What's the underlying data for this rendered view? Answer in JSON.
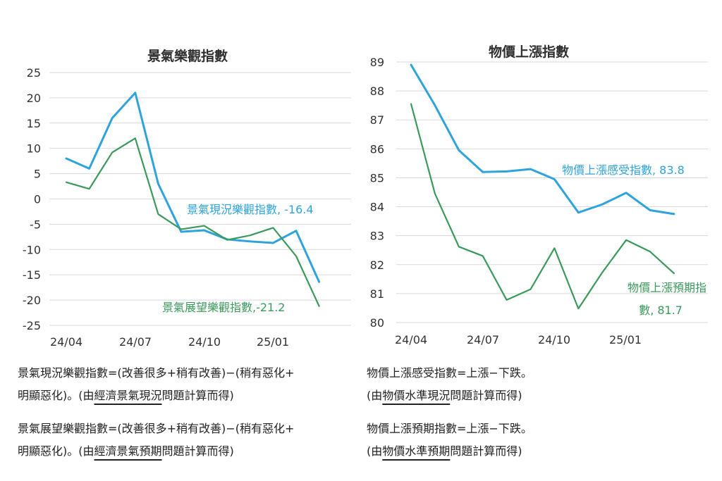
{
  "chart_data": [
    {
      "type": "line",
      "title": "景氣樂觀指數",
      "x": [
        "24/04",
        "24/05",
        "24/06",
        "24/07",
        "24/08",
        "24/09",
        "24/10",
        "24/11",
        "24/12",
        "25/01",
        "25/02",
        "25/03"
      ],
      "x_ticks": [
        "24/04",
        "24/07",
        "24/10",
        "25/01"
      ],
      "y_ticks": [
        "25",
        "20",
        "15",
        "10",
        "5",
        "0",
        "-5",
        "-10",
        "-15",
        "-20",
        "-25"
      ],
      "ylim": [
        -25,
        25
      ],
      "grid": true,
      "series": [
        {
          "name": "景氣現況樂觀指數",
          "color": "#2ea3dc",
          "label": "景氣現況樂觀指數, -16.4",
          "values": [
            8.0,
            6.0,
            16.0,
            21.0,
            3.0,
            -6.5,
            -6.2,
            -8.0,
            -8.4,
            -8.7,
            -6.3,
            -16.4
          ]
        },
        {
          "name": "景氣展望樂觀指數",
          "color": "#3a9a5b",
          "label": "景氣展望樂觀指數,-21.2",
          "values": [
            3.3,
            2.0,
            9.2,
            12.0,
            -3.0,
            -6.0,
            -5.3,
            -8.1,
            -7.2,
            -5.7,
            -11.3,
            -21.2
          ]
        }
      ]
    },
    {
      "type": "line",
      "title": "物價上漲指數",
      "x": [
        "24/04",
        "24/05",
        "24/06",
        "24/07",
        "24/08",
        "24/09",
        "24/10",
        "24/11",
        "24/12",
        "25/01",
        "25/02",
        "25/03"
      ],
      "x_ticks": [
        "24/04",
        "24/07",
        "24/10",
        "25/01"
      ],
      "y_ticks": [
        "89",
        "88",
        "87",
        "86",
        "85",
        "84",
        "83",
        "82",
        "81",
        "80"
      ],
      "ylim": [
        80,
        89
      ],
      "grid": true,
      "series": [
        {
          "name": "物價上漲感受指數",
          "color": "#2ea3dc",
          "label": "物價上漲感受指數, 83.8",
          "values": [
            88.9,
            87.5,
            85.95,
            85.2,
            85.22,
            85.3,
            84.95,
            83.8,
            84.08,
            84.48,
            83.88,
            83.75
          ]
        },
        {
          "name": "物價上漲預期指數",
          "color": "#3a9a5b",
          "label_lines": [
            "物價上漲預期指",
            "數, 81.7"
          ],
          "values": [
            87.55,
            84.45,
            82.62,
            82.3,
            80.78,
            81.15,
            82.57,
            80.48,
            81.73,
            82.85,
            82.45,
            81.7
          ]
        }
      ]
    }
  ],
  "notes": {
    "left1": {
      "line1": "景氣現況樂觀指數=(改善很多+稍有改善)−(稍有惡化+",
      "line2_a": "明顯惡化)。(由",
      "line2_u": "經濟景氣現況",
      "line2_b": "問題計算而得)"
    },
    "left2": {
      "line1": "景氣展望樂觀指數=(改善很多+稍有改善)−(稍有惡化+",
      "line2_a": "明顯惡化)。(由",
      "line2_u": "經濟景氣預期",
      "line2_b": "問題計算而得)"
    },
    "right1": {
      "line1": "物價上漲感受指數=上漲−下跌。",
      "line2_a": "(由",
      "line2_u": "物價水準現況",
      "line2_b": "問題計算而得)"
    },
    "right2": {
      "line1": "物價上漲預期指數=上漲−下跌。",
      "line2_a": "(由",
      "line2_u": "物價水準預期",
      "line2_b": "問題計算而得)"
    }
  }
}
